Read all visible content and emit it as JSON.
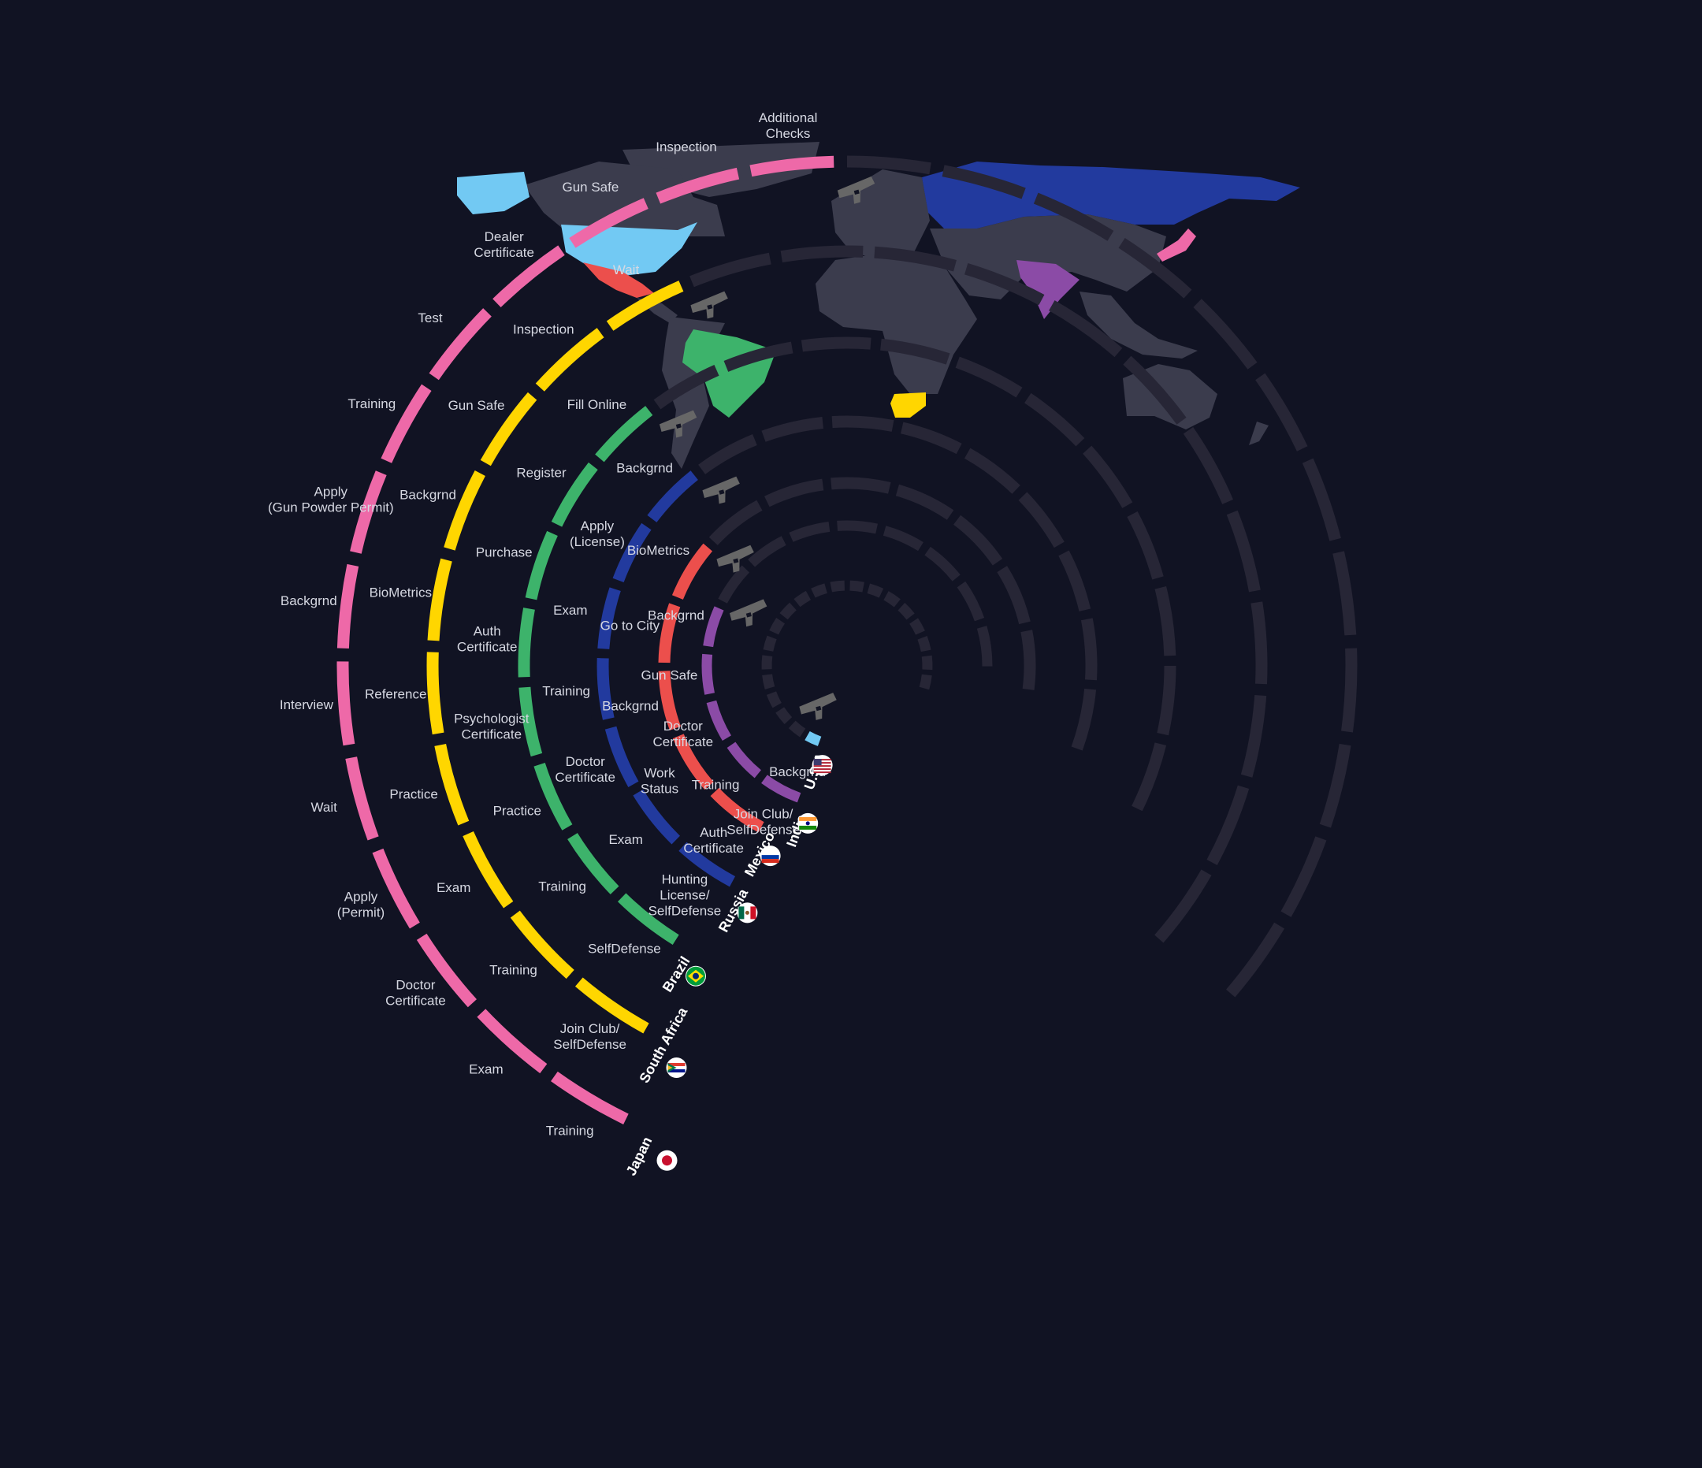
{
  "colors": {
    "background": "#111323",
    "inactive_segment": "#272636",
    "land": "#3b3c4d",
    "gun_icon": "#676767"
  },
  "countries": [
    {
      "name": "Japan",
      "color": "#ee69a8",
      "flag": "japan-flag",
      "steps": [
        {
          "label": "Training"
        },
        {
          "label": "Exam"
        },
        {
          "label": "Doctor\nCertificate"
        },
        {
          "label": "Apply\n(Permit)"
        },
        {
          "label": "Wait"
        },
        {
          "label": "Interview"
        },
        {
          "label": "Backgrnd"
        },
        {
          "label": "Apply\n(Gun Powder Permit)"
        },
        {
          "label": "Training"
        },
        {
          "label": "Test"
        },
        {
          "label": "Dealer\nCertificate"
        },
        {
          "label": "Gun Safe"
        },
        {
          "label": "Inspection"
        },
        {
          "label": "Additional\nChecks"
        }
      ]
    },
    {
      "name": "South Africa",
      "color": "#ffd600",
      "flag": "south-africa-flag",
      "steps": [
        {
          "label": "Join Club/\nSelfDefense"
        },
        {
          "label": "Training"
        },
        {
          "label": "Exam"
        },
        {
          "label": "Practice"
        },
        {
          "label": "Reference"
        },
        {
          "label": "BioMetrics"
        },
        {
          "label": "Backgrnd"
        },
        {
          "label": "Gun Safe"
        },
        {
          "label": "Inspection"
        },
        {
          "label": "Wait"
        }
      ]
    },
    {
      "name": "Brazil",
      "color": "#3db36b",
      "flag": "brazil-flag",
      "steps": [
        {
          "label": "SelfDefense"
        },
        {
          "label": "Training"
        },
        {
          "label": "Practice"
        },
        {
          "label": "Psychologist\nCertificate"
        },
        {
          "label": "Auth\nCertificate"
        },
        {
          "label": "Purchase"
        },
        {
          "label": "Register"
        },
        {
          "label": "Fill Online"
        }
      ]
    },
    {
      "name": "Russia",
      "color": "#223a9e",
      "flag": "mexico-flag",
      "steps": [
        {
          "label": "Hunting\nLicense/\nSelfDefense"
        },
        {
          "label": "Exam"
        },
        {
          "label": "Doctor\nCertificate"
        },
        {
          "label": "Training"
        },
        {
          "label": "Exam"
        },
        {
          "label": "Apply\n(License)"
        },
        {
          "label": "Backgrnd"
        }
      ]
    },
    {
      "name": "Mexico",
      "color": "#ec4f4c",
      "flag": "russia-flag",
      "steps": [
        {
          "label": "Auth\nCertificate"
        },
        {
          "label": "Work\nStatus"
        },
        {
          "label": "Backgrnd"
        },
        {
          "label": "Go to City"
        },
        {
          "label": "BioMetrics"
        }
      ]
    },
    {
      "name": "India",
      "color": "#8b4ba6",
      "flag": "india-flag",
      "steps": [
        {
          "label": "Join Club/\nSelfDefense"
        },
        {
          "label": "Training"
        },
        {
          "label": "Doctor\nCertificate"
        },
        {
          "label": "Gun Safe"
        },
        {
          "label": "Backgrnd"
        }
      ]
    },
    {
      "name": "U.S.A",
      "color": "#72c9f3",
      "flag": "usa-flag",
      "steps": [
        {
          "label": "Backgrnd"
        }
      ]
    }
  ]
}
